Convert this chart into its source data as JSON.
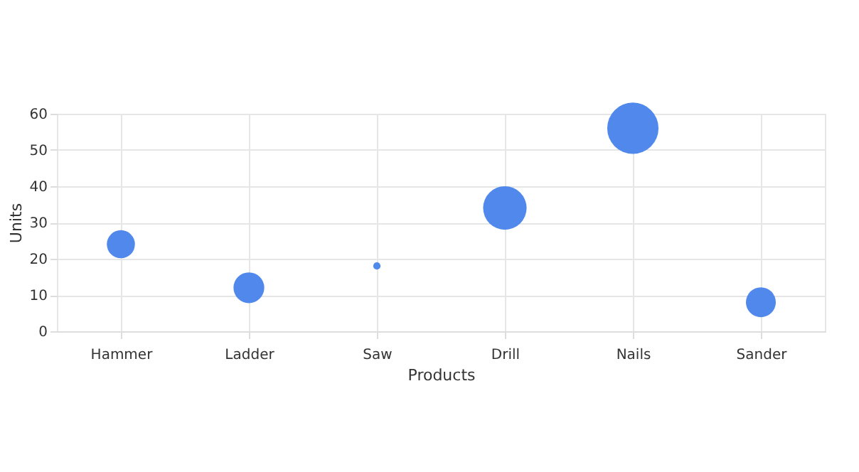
{
  "chart_data": {
    "type": "bubble",
    "xlabel": "Products",
    "ylabel": "Units",
    "categories": [
      "Hammer",
      "Ladder",
      "Saw",
      "Drill",
      "Nails",
      "Sander"
    ],
    "values": [
      24,
      12,
      18,
      34,
      56,
      8
    ],
    "sizes": [
      0.3,
      0.36,
      0.02,
      0.72,
      1,
      0.34
    ],
    "color": "#5088ec",
    "ylim": [
      0,
      60
    ],
    "yticks": [
      0,
      10,
      20,
      30,
      40,
      50,
      60
    ],
    "grid": true,
    "legend": false
  }
}
